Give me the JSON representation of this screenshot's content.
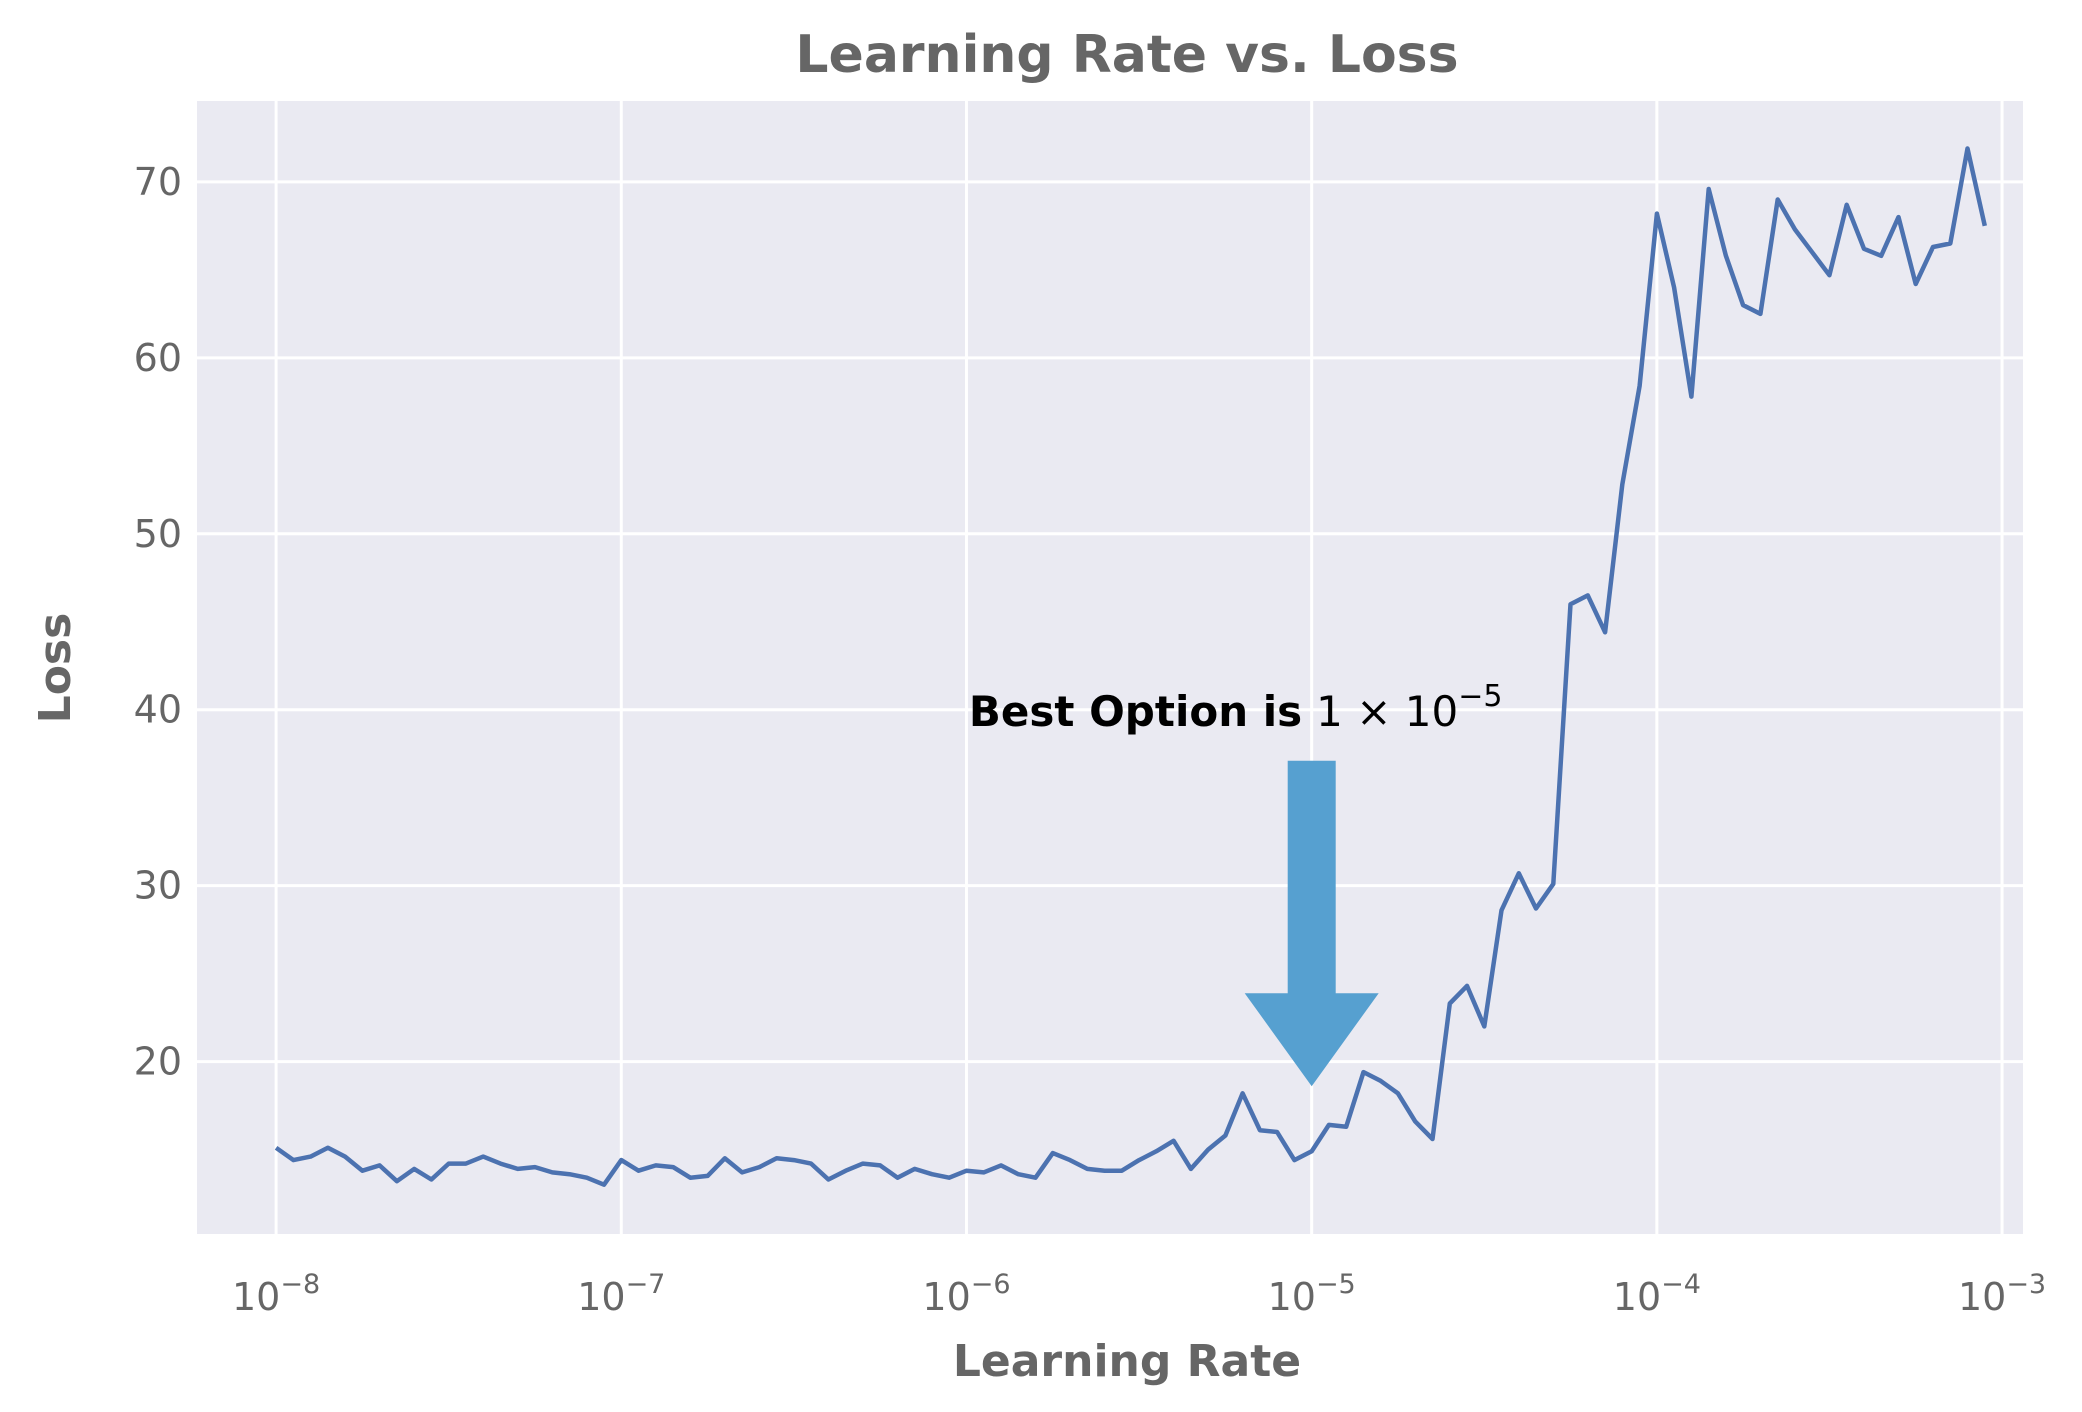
{
  "chart_data": {
    "type": "line",
    "title": "Learning Rate vs. Loss",
    "xlabel": "Learning Rate",
    "ylabel": "Loss",
    "x_scale": "log",
    "xlim": [
      5.9e-09,
      0.00115
    ],
    "ylim": [
      10.2,
      74.6
    ],
    "grid": true,
    "legend": "none",
    "colors": {
      "background": "#EAEAF2",
      "grid": "#FFFFFF",
      "line": "#4C72B0",
      "arrow": "#56A0D0",
      "text": "#666666"
    },
    "x_ticks": [
      {
        "value": 1e-08,
        "base": "10",
        "exp": "−8"
      },
      {
        "value": 1e-07,
        "base": "10",
        "exp": "−7"
      },
      {
        "value": 1e-06,
        "base": "10",
        "exp": "−6"
      },
      {
        "value": 1e-05,
        "base": "10",
        "exp": "−5"
      },
      {
        "value": 0.0001,
        "base": "10",
        "exp": "−4"
      },
      {
        "value": 0.001,
        "base": "10",
        "exp": "−3"
      }
    ],
    "y_ticks": [
      {
        "value": 20,
        "label": "20"
      },
      {
        "value": 30,
        "label": "30"
      },
      {
        "value": 40,
        "label": "40"
      },
      {
        "value": 50,
        "label": "50"
      },
      {
        "value": 60,
        "label": "60"
      },
      {
        "value": 70,
        "label": "70"
      }
    ],
    "series": [
      {
        "x": [
          1e-08,
          1.122e-08,
          1.259e-08,
          1.413e-08,
          1.585e-08,
          1.778e-08,
          1.995e-08,
          2.239e-08,
          2.512e-08,
          2.818e-08,
          3.162e-08,
          3.548e-08,
          3.981e-08,
          4.467e-08,
          5.012e-08,
          5.623e-08,
          6.31e-08,
          7.079e-08,
          7.943e-08,
          8.913e-08,
          1e-07,
          1.122e-07,
          1.259e-07,
          1.413e-07,
          1.585e-07,
          1.778e-07,
          1.995e-07,
          2.239e-07,
          2.512e-07,
          2.818e-07,
          3.162e-07,
          3.548e-07,
          3.981e-07,
          4.467e-07,
          5.012e-07,
          5.623e-07,
          6.31e-07,
          7.079e-07,
          7.943e-07,
          8.913e-07,
          1e-06,
          1.122e-06,
          1.259e-06,
          1.413e-06,
          1.585e-06,
          1.778e-06,
          1.995e-06,
          2.239e-06,
          2.512e-06,
          2.818e-06,
          3.162e-06,
          3.548e-06,
          3.981e-06,
          4.467e-06,
          5.012e-06,
          5.623e-06,
          6.31e-06,
          7.079e-06,
          7.943e-06,
          8.913e-06,
          1e-05,
          1.122e-05,
          1.259e-05,
          1.413e-05,
          1.585e-05,
          1.778e-05,
          1.995e-05,
          2.239e-05,
          2.512e-05,
          2.818e-05,
          3.162e-05,
          3.548e-05,
          3.981e-05,
          4.467e-05,
          5.012e-05,
          5.623e-05,
          6.31e-05,
          7.079e-05,
          7.943e-05,
          8.913e-05,
          0.0001,
          0.0001122,
          0.0001259,
          0.0001413,
          0.0001585,
          0.0001778,
          0.0001995,
          0.0002239,
          0.0002512,
          0.0002818,
          0.0003162,
          0.0003548,
          0.0003981,
          0.0004467,
          0.0005012,
          0.0005623,
          0.000631,
          0.0007079,
          0.0007943,
          0.0008913
        ],
        "y": [
          15.1,
          14.4,
          14.6,
          15.1,
          14.6,
          13.8,
          14.1,
          13.2,
          13.9,
          13.3,
          14.2,
          14.2,
          14.6,
          14.2,
          13.9,
          14.0,
          13.7,
          13.6,
          13.4,
          13.0,
          14.4,
          13.8,
          14.1,
          14.0,
          13.4,
          13.5,
          14.5,
          13.7,
          14.0,
          14.5,
          14.4,
          14.2,
          13.3,
          13.8,
          14.2,
          14.1,
          13.4,
          13.9,
          13.6,
          13.4,
          13.8,
          13.7,
          14.1,
          13.6,
          13.4,
          14.8,
          14.4,
          13.9,
          13.8,
          13.8,
          14.4,
          14.9,
          15.5,
          13.9,
          15.0,
          15.8,
          18.2,
          16.1,
          16.0,
          14.4,
          14.9,
          16.4,
          16.3,
          19.4,
          18.9,
          18.2,
          16.6,
          15.6,
          23.3,
          24.3,
          22.0,
          28.6,
          30.7,
          28.7,
          30.1,
          46.0,
          46.5,
          44.4,
          52.8,
          58.4,
          68.2,
          64.0,
          57.8,
          69.6,
          65.8,
          63.0,
          62.5,
          69.0,
          67.3,
          66.0,
          64.7,
          68.7,
          66.2,
          65.8,
          68.0,
          64.2,
          66.3,
          66.5,
          71.9,
          67.5
        ]
      }
    ],
    "annotation": {
      "text_bold": "Best Option is",
      "text_math_base": "1 × 10",
      "text_math_exp": "−5",
      "x": 1e-05,
      "text_y": 39.8,
      "arrow_tail_y": 37.1,
      "arrow_head_y": 18.6
    }
  }
}
